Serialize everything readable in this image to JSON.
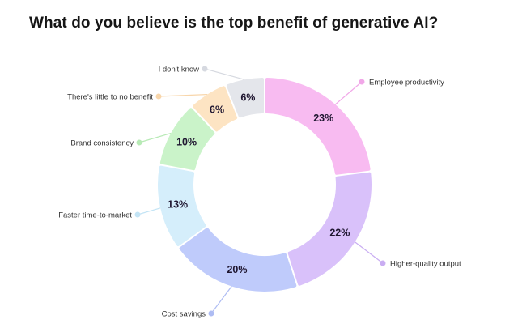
{
  "chart_data": {
    "type": "pie",
    "variant": "donut",
    "title": "What do you believe is the top benefit of generative AI?",
    "unit": "%",
    "slices": [
      {
        "label": "Employee productivity",
        "value": 23,
        "color": "#f8bbf1",
        "dot": "#f1a7e8"
      },
      {
        "label": "Higher-quality output",
        "value": 22,
        "color": "#d9c1fa",
        "dot": "#c9adf2"
      },
      {
        "label": "Cost savings",
        "value": 20,
        "color": "#bfcbfb",
        "dot": "#aebcf3"
      },
      {
        "label": "Faster time-to-market",
        "value": 13,
        "color": "#d5eefb",
        "dot": "#c3e4f5"
      },
      {
        "label": "Brand consistency",
        "value": 10,
        "color": "#caf3c9",
        "dot": "#b7eab5"
      },
      {
        "label": "There's little to no benefit",
        "value": 6,
        "color": "#fde4c3",
        "dot": "#f8d6ab"
      },
      {
        "label": "I don't know",
        "value": 6,
        "color": "#e4e6eb",
        "dot": "#d6d9e0"
      }
    ]
  }
}
